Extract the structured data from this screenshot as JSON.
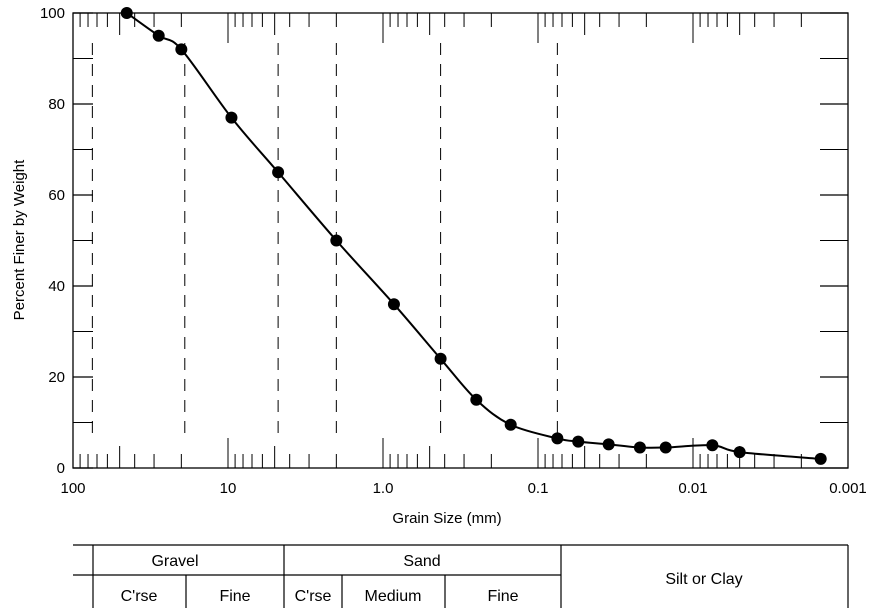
{
  "chart_data": {
    "type": "scatter",
    "subtype": "grain-size distribution curve (points joined by smooth line)",
    "xlabel": "Grain Size (mm)",
    "ylabel": "Percent Finer by Weight",
    "x_scale": "log",
    "x_reversed": true,
    "xlim": [
      100,
      0.001
    ],
    "ylim": [
      0,
      100
    ],
    "x_ticks": [
      {
        "value": 100,
        "label": "100"
      },
      {
        "value": 10,
        "label": "10"
      },
      {
        "value": 1,
        "label": "1.0"
      },
      {
        "value": 0.1,
        "label": "0.1"
      },
      {
        "value": 0.01,
        "label": "0.01"
      },
      {
        "value": 0.001,
        "label": "0.001"
      }
    ],
    "y_ticks": [
      {
        "value": 0,
        "label": "0"
      },
      {
        "value": 20,
        "label": "20"
      },
      {
        "value": 40,
        "label": "40"
      },
      {
        "value": 60,
        "label": "60"
      },
      {
        "value": 80,
        "label": "80"
      },
      {
        "value": 100,
        "label": "100"
      }
    ],
    "grid": false,
    "series": [
      {
        "x": [
          45,
          28,
          20,
          9.5,
          4.75,
          2.0,
          0.85,
          0.425,
          0.25,
          0.15,
          0.075,
          0.055,
          0.035,
          0.022,
          0.015,
          0.0075,
          0.005,
          0.0015
        ],
        "y": [
          100,
          95,
          92,
          77,
          65,
          50,
          36,
          24,
          15,
          9.5,
          6.5,
          5.8,
          5.2,
          4.5,
          4.5,
          5.0,
          3.5,
          2.0
        ]
      }
    ],
    "classification_boundaries_mm": [
      75,
      19,
      4.75,
      2.0,
      0.425,
      0.075
    ]
  },
  "classification": {
    "gravel": "Gravel",
    "sand": "Sand",
    "silt_clay": "Silt or Clay",
    "gravel_coarse": "C'rse",
    "gravel_fine": "Fine",
    "sand_coarse": "C'rse",
    "sand_medium": "Medium",
    "sand_fine": "Fine"
  }
}
